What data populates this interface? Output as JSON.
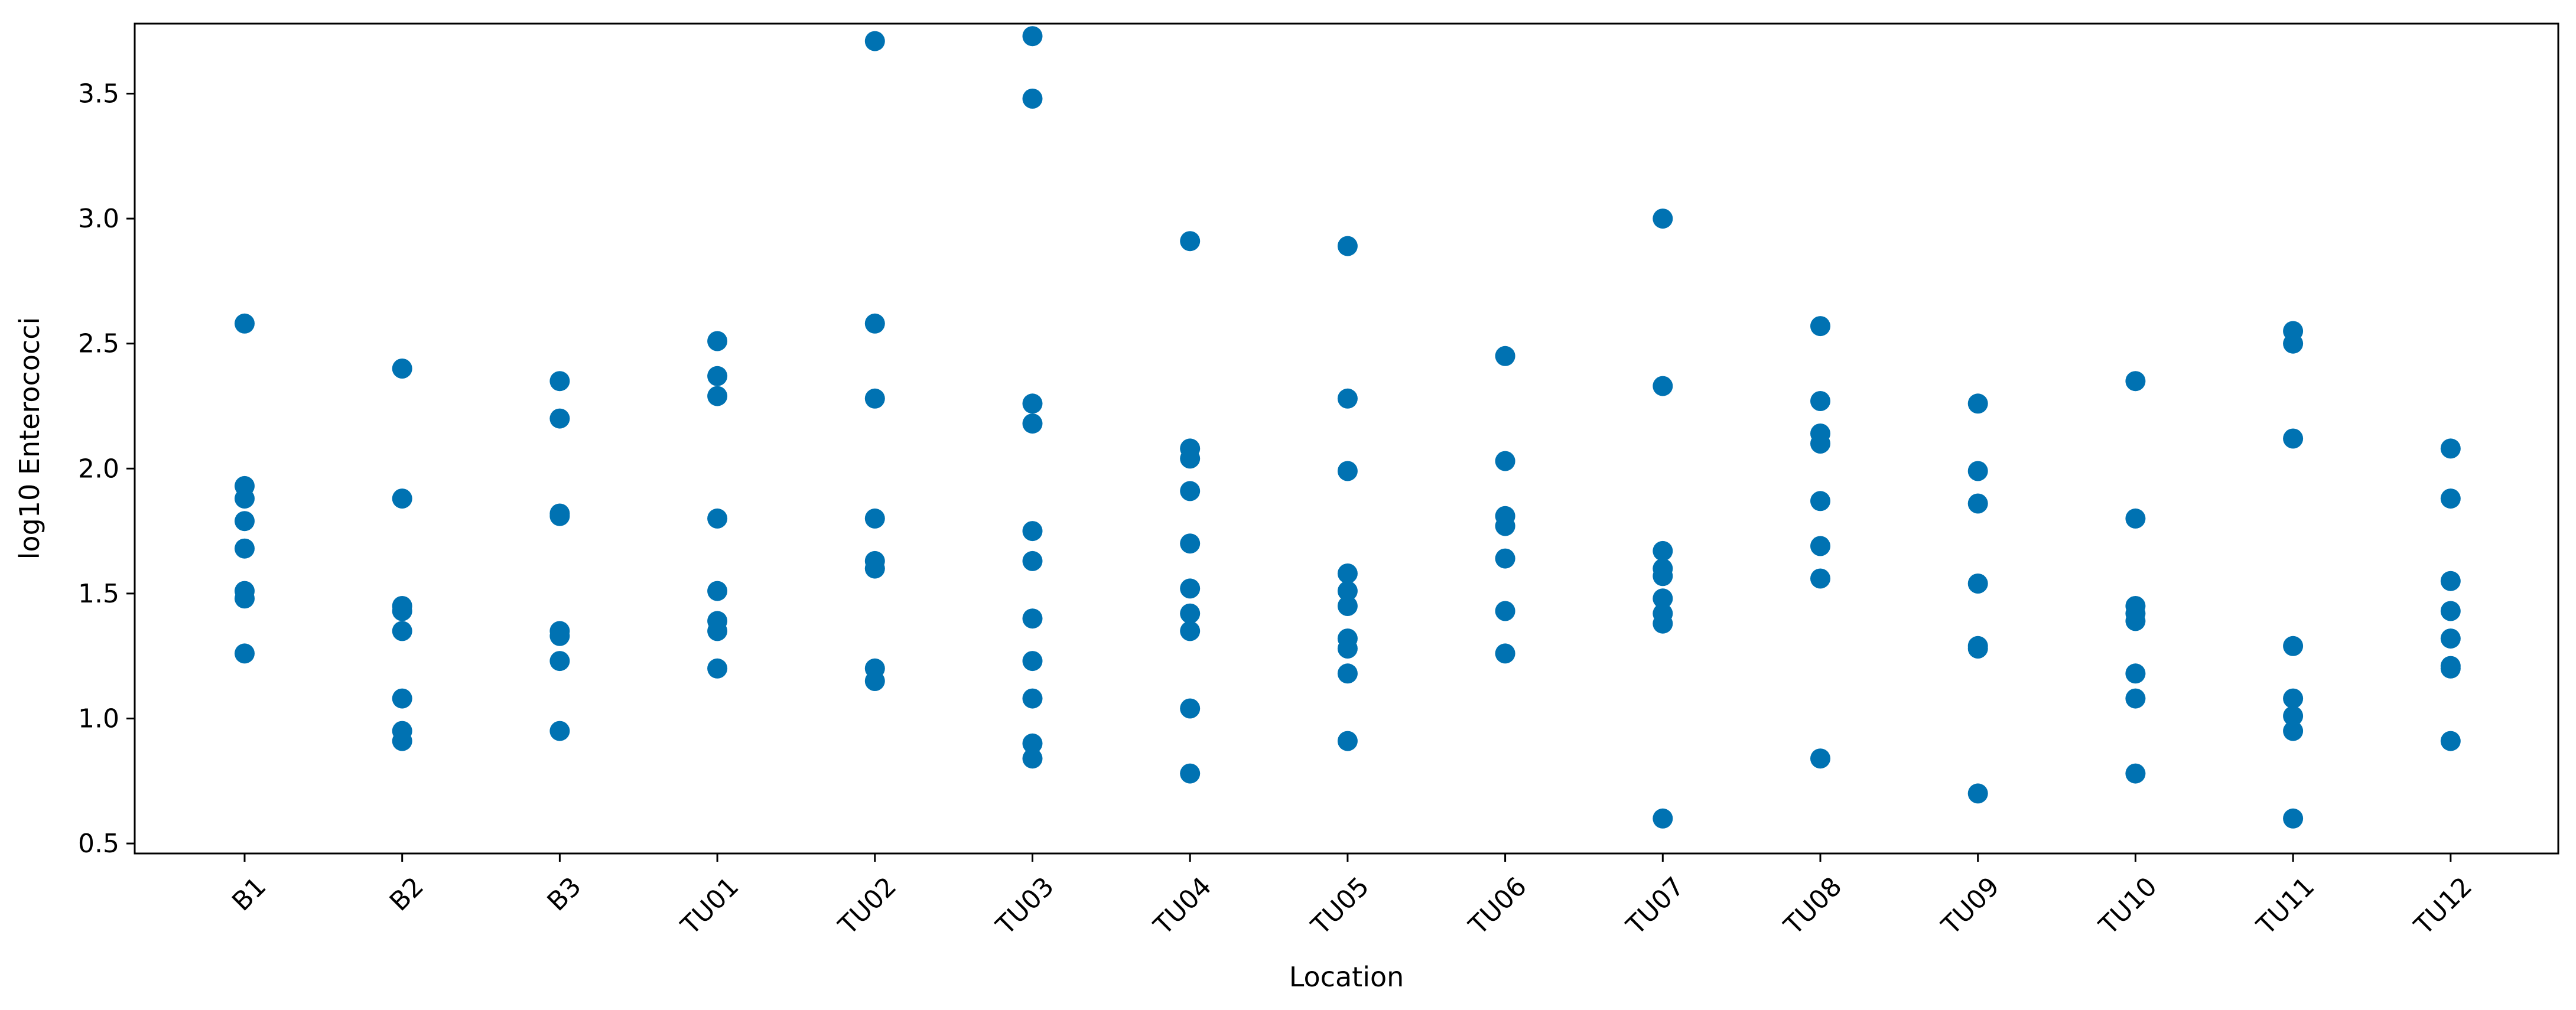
{
  "chart_data": {
    "type": "scatter",
    "xlabel": "Location",
    "ylabel": "log10 Enterococci",
    "categories": [
      "B1",
      "B2",
      "B3",
      "TU01",
      "TU02",
      "TU03",
      "TU04",
      "TU05",
      "TU06",
      "TU07",
      "TU08",
      "TU09",
      "TU10",
      "TU11",
      "TU12"
    ],
    "yticks": [
      "0.5",
      "1.0",
      "1.5",
      "2.0",
      "2.5",
      "3.0",
      "3.5"
    ],
    "ylim": [
      0.46,
      3.78
    ],
    "grid": false,
    "legend": "none",
    "marker_color": "#0072b2",
    "points": {
      "B1": [
        2.58,
        1.93,
        1.88,
        1.79,
        1.68,
        1.51,
        1.48,
        1.26
      ],
      "B2": [
        2.4,
        1.88,
        1.45,
        1.43,
        1.35,
        1.08,
        0.95,
        0.91
      ],
      "B3": [
        2.35,
        2.2,
        1.82,
        1.81,
        1.35,
        1.33,
        1.23,
        0.95
      ],
      "TU01": [
        2.51,
        2.37,
        2.29,
        1.8,
        1.51,
        1.39,
        1.35,
        1.2
      ],
      "TU02": [
        3.71,
        2.58,
        2.28,
        1.8,
        1.63,
        1.6,
        1.2,
        1.15
      ],
      "TU03": [
        3.73,
        3.48,
        2.26,
        2.18,
        1.75,
        1.63,
        1.4,
        1.23,
        1.08,
        0.9,
        0.84
      ],
      "TU04": [
        2.91,
        2.08,
        2.04,
        1.91,
        1.7,
        1.52,
        1.42,
        1.35,
        1.04,
        0.78
      ],
      "TU05": [
        2.89,
        2.28,
        1.99,
        1.58,
        1.51,
        1.45,
        1.32,
        1.28,
        1.18,
        0.91
      ],
      "TU06": [
        2.45,
        2.03,
        1.81,
        1.77,
        1.64,
        1.43,
        1.26
      ],
      "TU07": [
        3.0,
        2.33,
        1.67,
        1.6,
        1.57,
        1.48,
        1.42,
        1.38,
        0.6
      ],
      "TU08": [
        2.57,
        2.27,
        2.14,
        2.1,
        1.87,
        1.69,
        1.56,
        0.84
      ],
      "TU09": [
        2.26,
        1.99,
        1.86,
        1.54,
        1.29,
        1.28,
        0.7
      ],
      "TU10": [
        2.35,
        1.8,
        1.45,
        1.42,
        1.39,
        1.18,
        1.08,
        0.78
      ],
      "TU11": [
        2.55,
        2.5,
        2.12,
        1.29,
        1.08,
        1.01,
        0.95,
        0.6
      ],
      "TU12": [
        2.08,
        1.88,
        1.55,
        1.43,
        1.32,
        1.21,
        1.2,
        0.91
      ]
    }
  }
}
